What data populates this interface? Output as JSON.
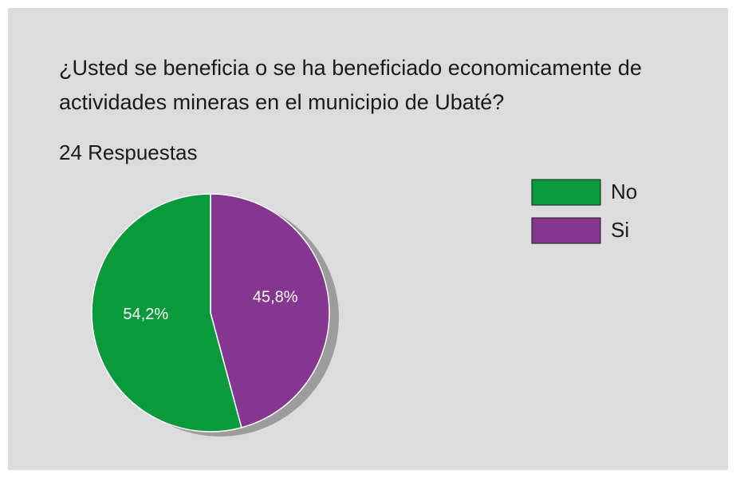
{
  "chart_data": {
    "type": "pie",
    "title": "¿Usted se beneficia o se ha beneficiado economicamente de actividades mineras en el municipio de Ubaté?",
    "subtitle": "24 Respuestas",
    "categories": [
      "No",
      "Si"
    ],
    "values": [
      54.2,
      45.8
    ],
    "value_labels": [
      "54,2%",
      "45,8%"
    ],
    "colors": [
      "#0a9a3c",
      "#85378f"
    ],
    "legend": "right"
  }
}
